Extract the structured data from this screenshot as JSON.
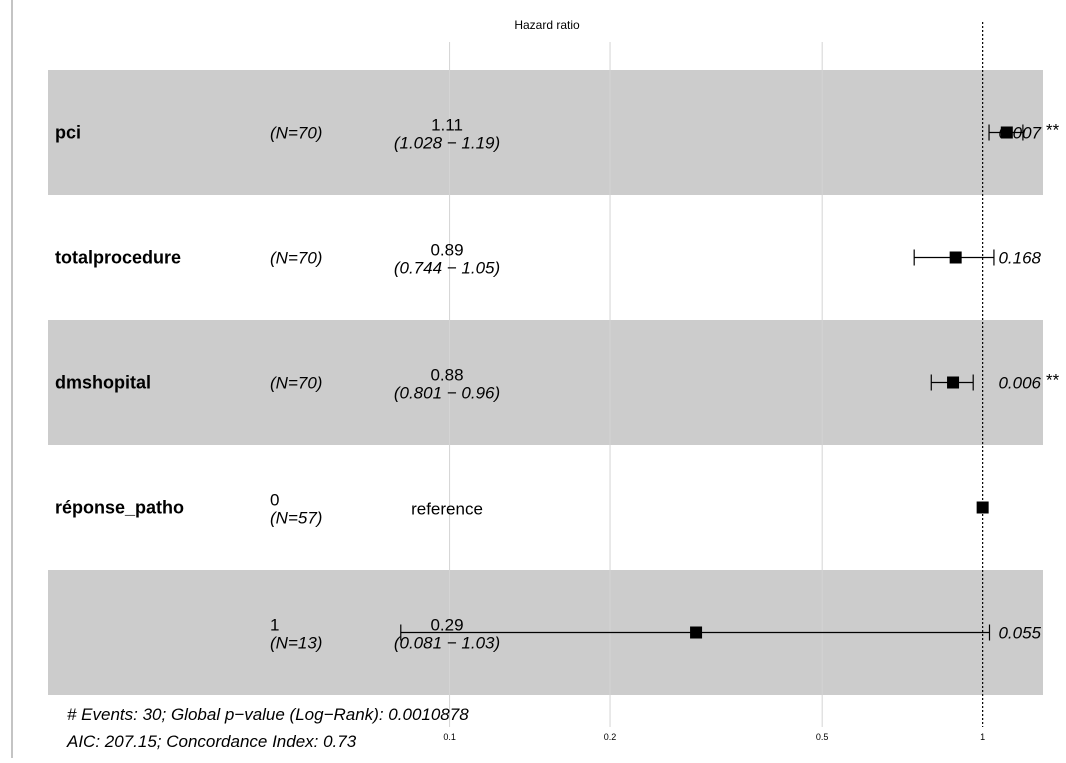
{
  "chart_data": {
    "type": "forest",
    "title": "Hazard ratio",
    "x_scale": "log",
    "xlim": [
      0.07,
      1.15
    ],
    "x_ticks": [
      0.1,
      0.2,
      0.5,
      1
    ],
    "x_tick_labels": [
      "0.1",
      "0.2",
      "0.5",
      "1"
    ],
    "reference_line": 1,
    "rows": [
      {
        "variable": "pci",
        "level": "",
        "n": "(N=70)",
        "estimate": "1.11",
        "ci_text": "(1.028 − 1.19)",
        "hr": 1.11,
        "lower": 1.028,
        "upper": 1.19,
        "p_value": "0.007",
        "signif": "**",
        "shaded": true
      },
      {
        "variable": "totalprocedure",
        "level": "",
        "n": "(N=70)",
        "estimate": "0.89",
        "ci_text": "(0.744 − 1.05)",
        "hr": 0.89,
        "lower": 0.744,
        "upper": 1.05,
        "p_value": "0.168",
        "signif": "",
        "shaded": false
      },
      {
        "variable": "dmshopital",
        "level": "",
        "n": "(N=70)",
        "estimate": "0.88",
        "ci_text": "(0.801 − 0.96)",
        "hr": 0.88,
        "lower": 0.801,
        "upper": 0.96,
        "p_value": "0.006",
        "signif": "**",
        "shaded": true
      },
      {
        "variable": "réponse_patho",
        "level": "0",
        "n": "(N=57)",
        "estimate": "reference",
        "ci_text": "",
        "hr": 1,
        "lower": null,
        "upper": null,
        "p_value": "",
        "signif": "",
        "shaded": false
      },
      {
        "variable": "",
        "level": "1",
        "n": "(N=13)",
        "estimate": "0.29",
        "ci_text": "(0.081 − 1.03)",
        "hr": 0.29,
        "lower": 0.081,
        "upper": 1.03,
        "p_value": "0.055",
        "signif": "",
        "shaded": true
      }
    ],
    "footer": [
      "# Events: 30; Global p−value (Log−Rank): 0.0010878",
      "AIC: 207.15; Concordance Index: 0.73"
    ],
    "colors": {
      "shade": "#cccccc",
      "grid": "#d4d4d4",
      "mark": "#000000"
    }
  }
}
